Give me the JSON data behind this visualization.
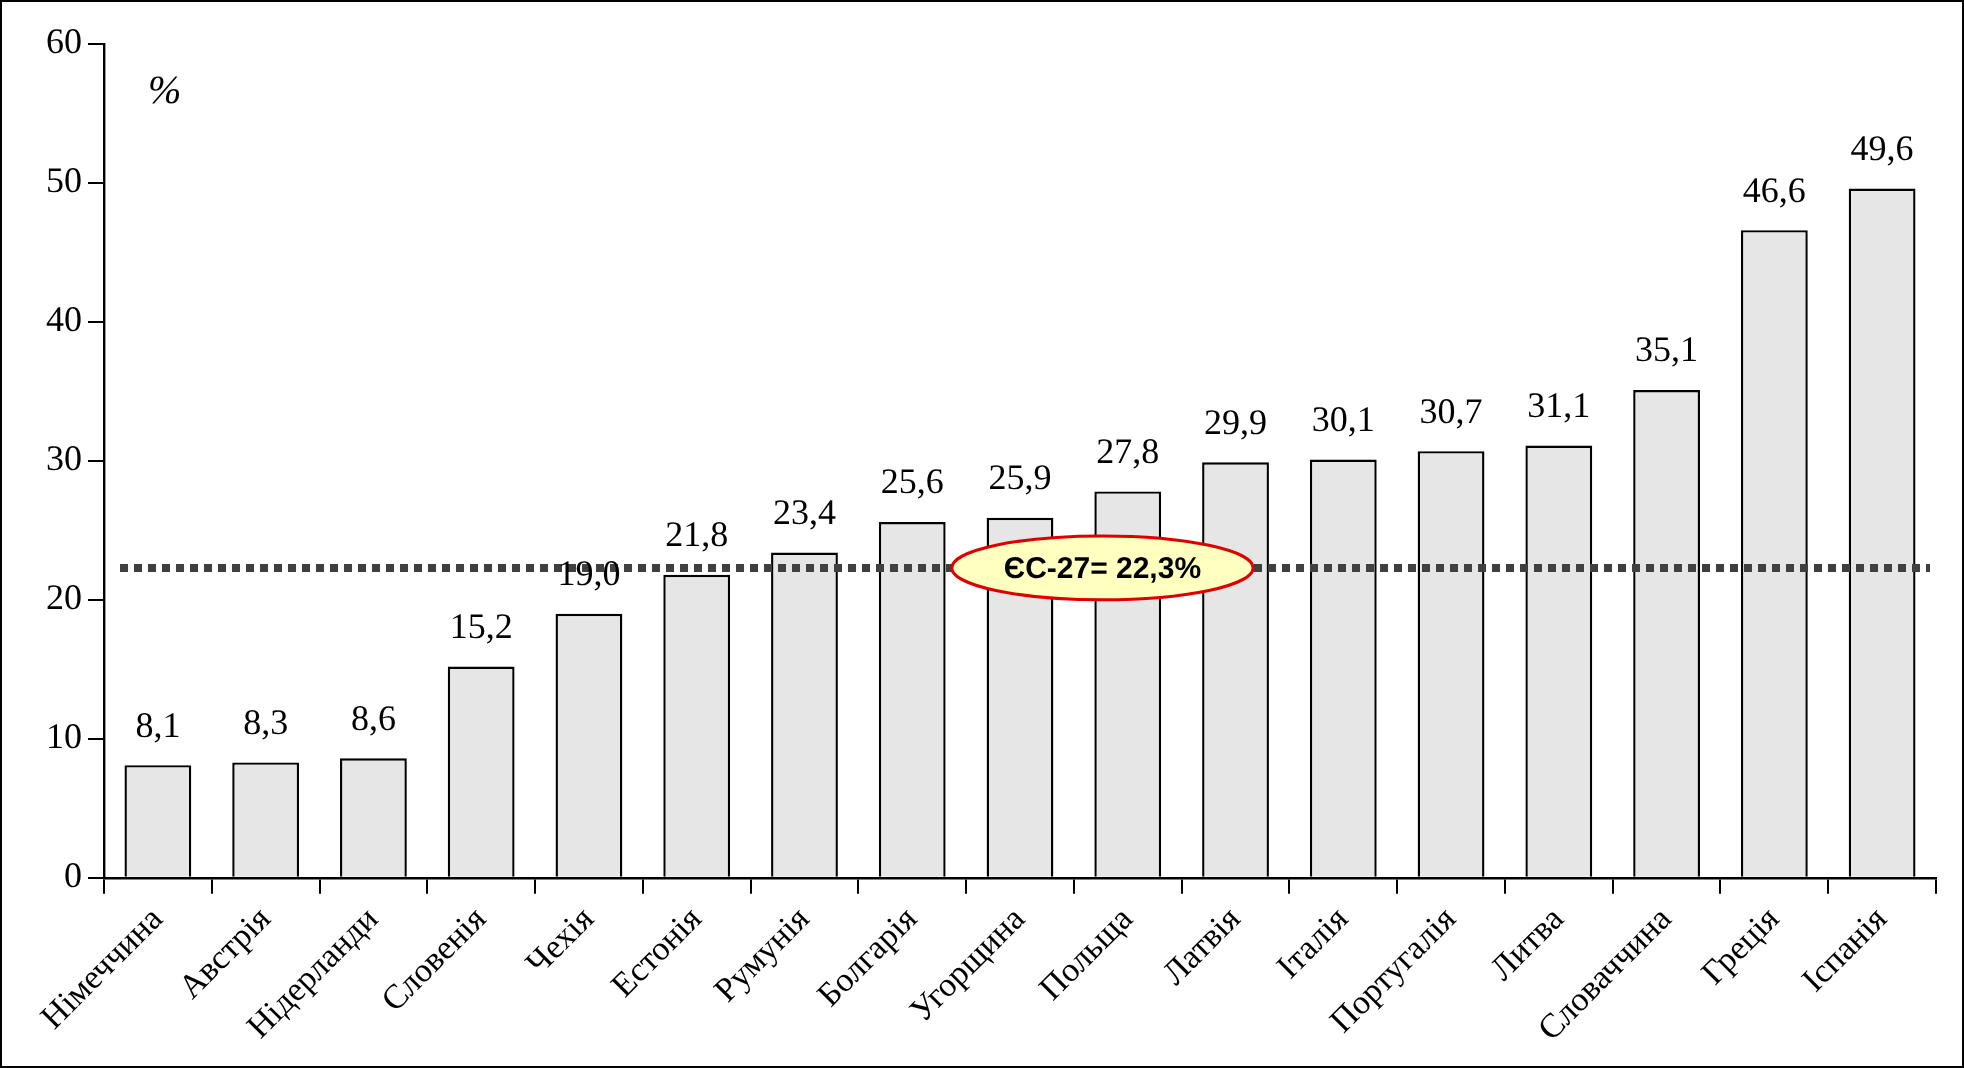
{
  "chart_data": {
    "type": "bar",
    "ylabel": "%",
    "categories": [
      "Німеччина",
      "Австрія",
      "Нідерланди",
      "Словенія",
      "Чехія",
      "Естонія",
      "Румунія",
      "Болгарія",
      "Угорщина",
      "Польща",
      "Латвія",
      "Італія",
      "Португалія",
      "Литва",
      "Словаччина",
      "Греція",
      "Іспанія"
    ],
    "values": [
      8.1,
      8.3,
      8.6,
      15.2,
      19.0,
      21.8,
      23.4,
      25.6,
      25.9,
      27.8,
      29.9,
      30.1,
      30.7,
      31.1,
      35.1,
      46.6,
      49.6
    ],
    "value_labels": [
      "8,1",
      "8,3",
      "8,6",
      "15,2",
      "19,0",
      "21,8",
      "23,4",
      "25,6",
      "25,9",
      "27,8",
      "29,9",
      "30,1",
      "30,7",
      "31,1",
      "35,1",
      "46,6",
      "49,6"
    ],
    "color": "#e6e6e6",
    "ylim": [
      0,
      60
    ],
    "yticks": [
      0,
      10,
      20,
      30,
      40,
      50,
      60
    ],
    "ref_lines": [
      {
        "axis": "y",
        "value": 22.3,
        "label": "ЄС-27= 22,3%",
        "color": "#404040",
        "line_style": "dotted"
      }
    ],
    "grid": false,
    "legend": false
  }
}
